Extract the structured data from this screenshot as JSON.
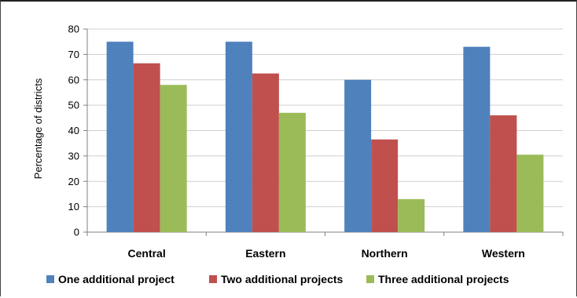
{
  "chart_data": {
    "type": "bar",
    "categories": [
      "Central",
      "Eastern",
      "Northern",
      "Western"
    ],
    "series": [
      {
        "name": "One additional  project",
        "values": [
          75,
          75,
          60,
          73
        ],
        "color": "#4F81BD"
      },
      {
        "name": "Two additional projects",
        "values": [
          66.5,
          62.5,
          36.5,
          46
        ],
        "color": "#C0504D"
      },
      {
        "name": "Three additional projects",
        "values": [
          58,
          47,
          13,
          30.5
        ],
        "color": "#9BBB59"
      }
    ],
    "ylabel": "Percentage of districts",
    "xlabel": "",
    "ylim": [
      0,
      80
    ],
    "yticks": [
      0,
      10,
      20,
      30,
      40,
      50,
      60,
      70,
      80
    ],
    "grid": true,
    "legend_position": "bottom"
  }
}
